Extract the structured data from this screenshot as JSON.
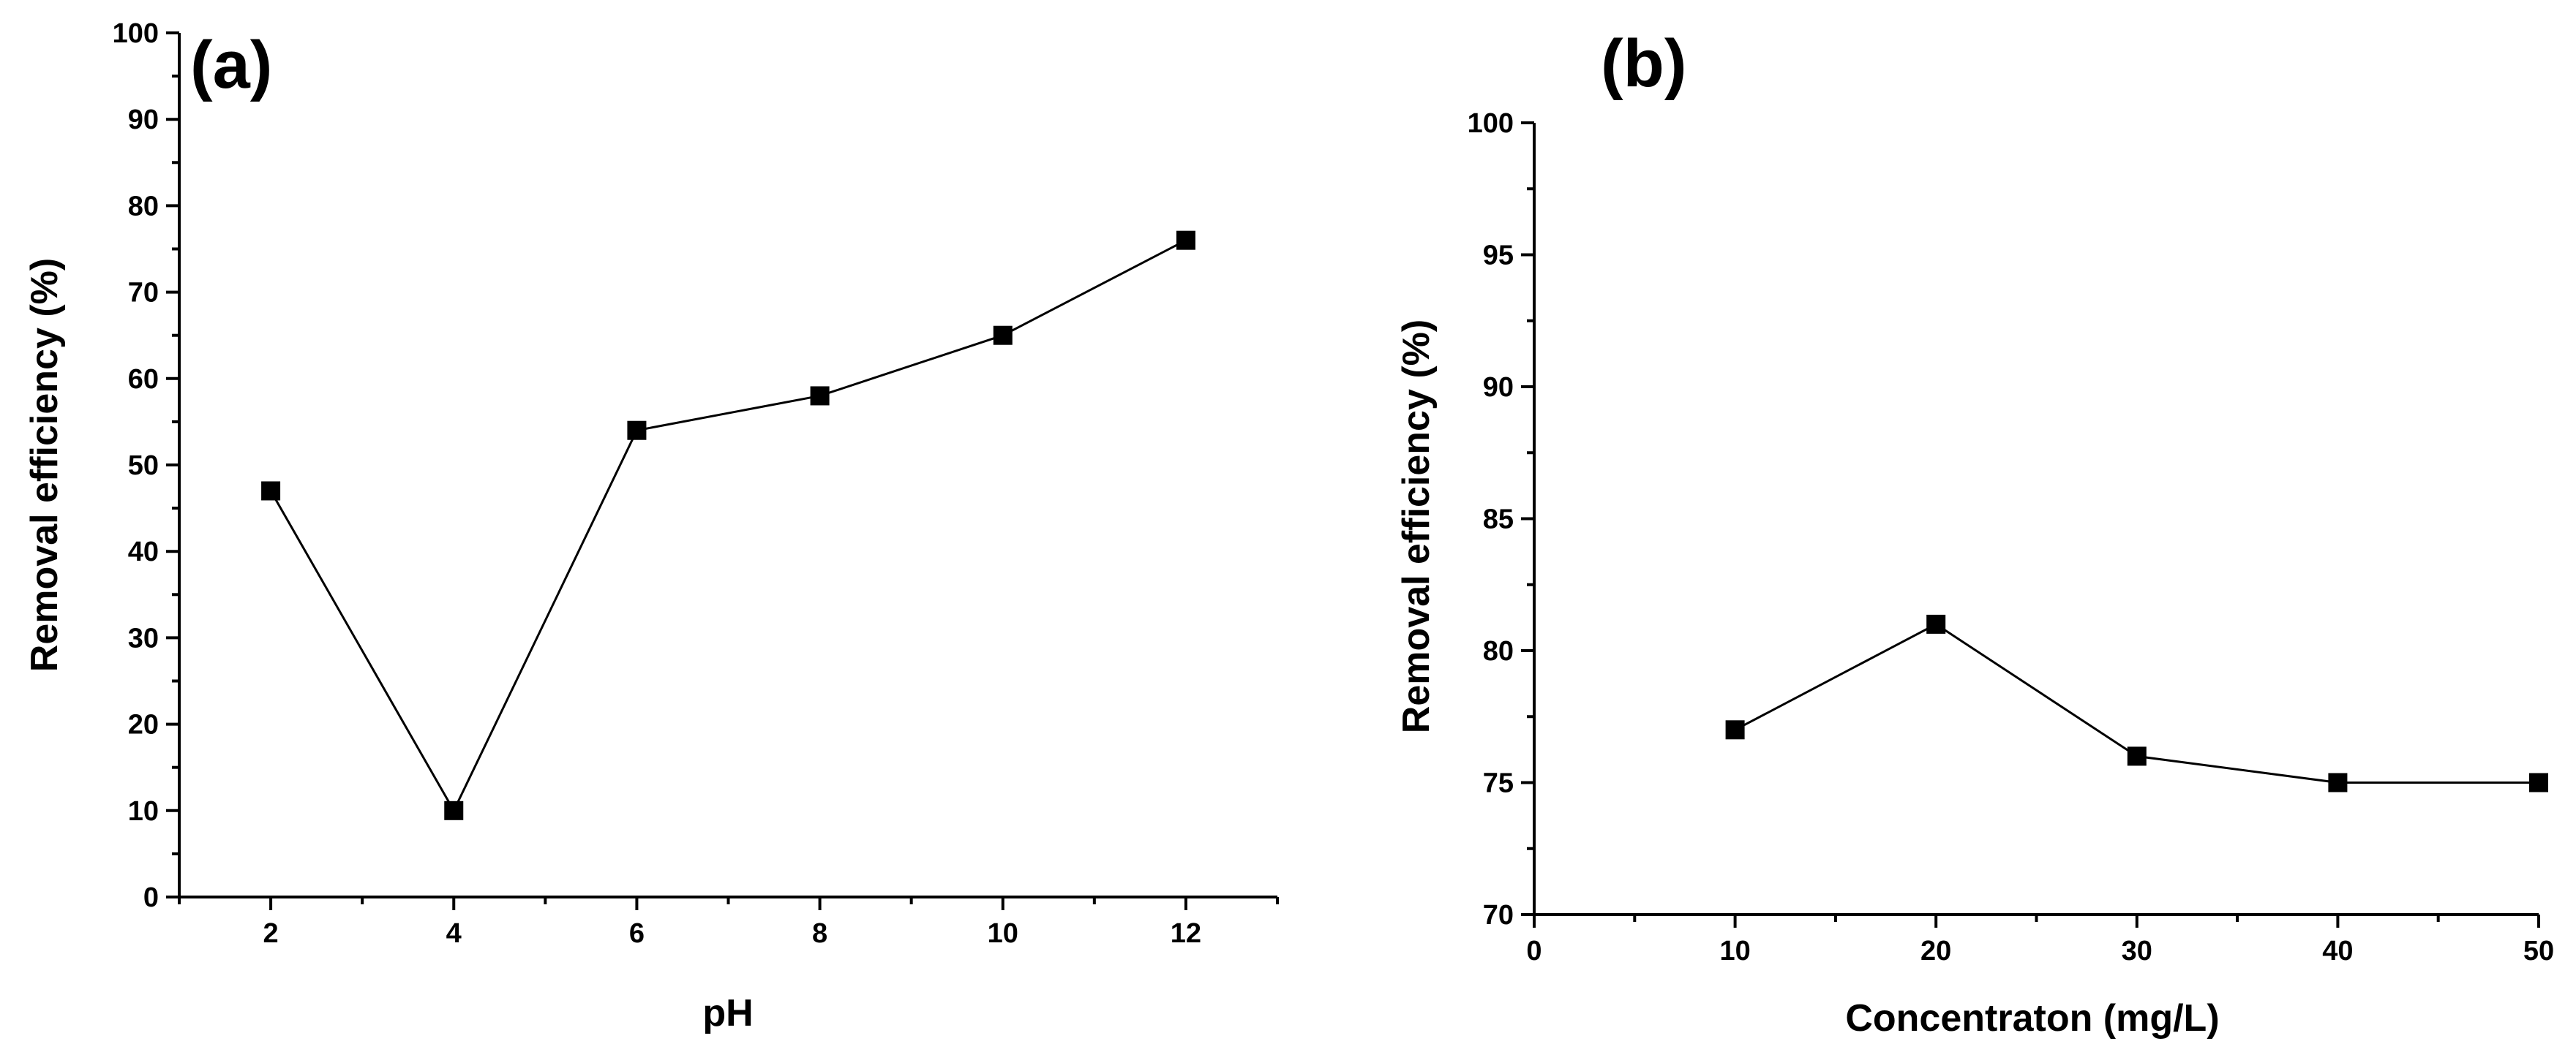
{
  "chart_data": [
    {
      "panel_label": "(a)",
      "type": "line",
      "x": [
        2,
        4,
        6,
        8,
        10,
        12
      ],
      "values": [
        47,
        10,
        54,
        58,
        65,
        76
      ],
      "xlabel": "pH",
      "ylabel": "Removal efficiency (%)",
      "xlim": [
        1,
        13
      ],
      "ylim": [
        0,
        100
      ],
      "xticks": [
        2,
        4,
        6,
        8,
        10,
        12
      ],
      "xtick_labels": [
        "2",
        "4",
        "6",
        "8",
        "10",
        "12"
      ],
      "xminor": [
        1,
        3,
        5,
        7,
        9,
        11,
        13
      ],
      "yticks": [
        0,
        10,
        20,
        30,
        40,
        50,
        60,
        70,
        80,
        90,
        100
      ],
      "ytick_labels": [
        "0",
        "10",
        "20",
        "30",
        "40",
        "50",
        "60",
        "70",
        "80",
        "90",
        "100"
      ],
      "yminor": [
        5,
        15,
        25,
        35,
        45,
        55,
        65,
        75,
        85,
        95
      ],
      "marker": "square",
      "grid": false
    },
    {
      "panel_label": "(b)",
      "type": "line",
      "x": [
        10,
        20,
        30,
        40,
        50
      ],
      "values": [
        77,
        81,
        76,
        75,
        75
      ],
      "xlabel": "Concentraton (mg/L)",
      "ylabel": "Removal efficiency (%)",
      "xlim": [
        0,
        50
      ],
      "ylim": [
        70,
        100
      ],
      "xticks": [
        0,
        10,
        20,
        30,
        40,
        50
      ],
      "xtick_labels": [
        "0",
        "10",
        "20",
        "30",
        "40",
        "50"
      ],
      "xminor": [
        5,
        15,
        25,
        35,
        45
      ],
      "yticks": [
        70,
        75,
        80,
        85,
        90,
        95,
        100
      ],
      "ytick_labels": [
        "70",
        "75",
        "80",
        "85",
        "90",
        "95",
        "100"
      ],
      "yminor": [
        72.5,
        77.5,
        82.5,
        87.5,
        92.5,
        97.5
      ],
      "marker": "square",
      "grid": false
    }
  ]
}
